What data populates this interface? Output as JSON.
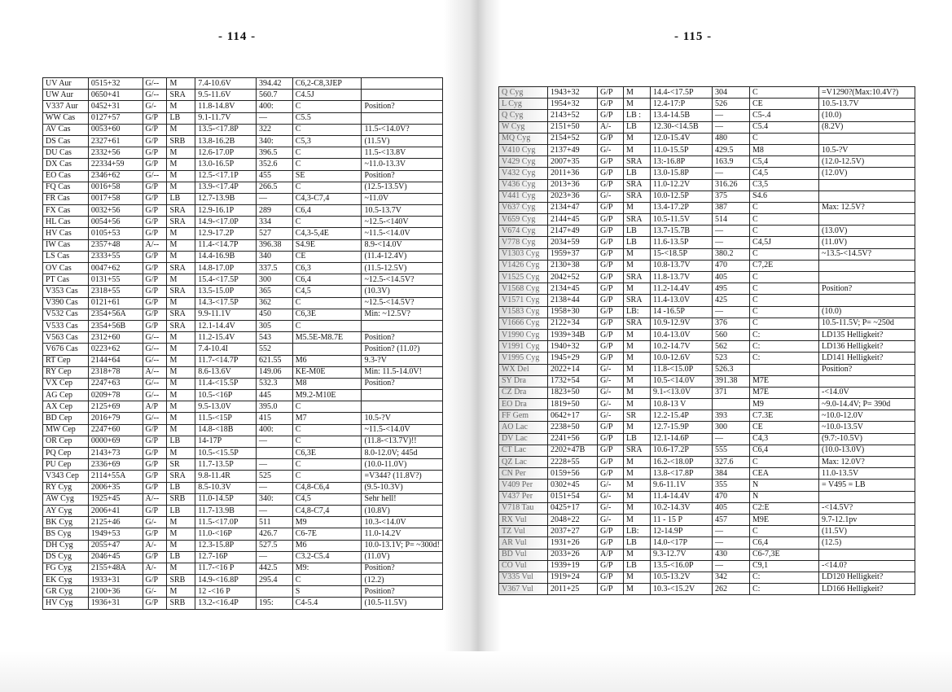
{
  "left_page": {
    "page_number": "- 114 -",
    "rows": [
      [
        "UV Aur",
        "0515+32",
        "G/--",
        "M",
        "7.4-10.6V",
        "394.42",
        "C6,2-C8,3JEP",
        ""
      ],
      [
        "UW Aur",
        "0650+41",
        "G/--",
        "SRA",
        "9.5-11.6V",
        "560.7",
        "C4.5J",
        ""
      ],
      [
        "V337 Aur",
        "0452+31",
        "G/-",
        "M",
        "11.8-14.8V",
        "400:",
        "C",
        "Position?"
      ],
      [
        "WW Cas",
        "0127+57",
        "G/P",
        "LB",
        "9.1-11.7V",
        "—",
        "C5.5",
        ""
      ],
      [
        "AV Cas",
        "0053+60",
        "G/P",
        "M",
        "13.5-<17.8P",
        "322",
        "C",
        "11.5-<14.0V?"
      ],
      [
        "DS Cas",
        "2327+61",
        "G/P",
        "SRB",
        "13.8-16.2B",
        "340:",
        "C5,3",
        "(11.5V)"
      ],
      [
        "DU Cas",
        "2332+56",
        "G/P",
        "M",
        "12.6-17.0P",
        "396.5",
        "C",
        "11.5-<13.8V"
      ],
      [
        "DX Cas",
        "22334+59",
        "G/P",
        "M",
        "13.0-16.5P",
        "352.6",
        "C",
        "~11.0-13.3V"
      ],
      [
        "EO Cas",
        "2346+62",
        "G/--",
        "M",
        "12.5-<17.1P",
        "455",
        "SE",
        "Position?"
      ],
      [
        "FQ Cas",
        "0016+58",
        "G/P",
        "M",
        "13.9-<17.4P",
        "266.5",
        "C",
        "(12.5-13.5V)"
      ],
      [
        "FR Cas",
        "0017+58",
        "G/P",
        "LB",
        "12.7-13.9B",
        "—",
        "C4,3-C7,4",
        "~11.0V"
      ],
      [
        "FX Cas",
        "0032+56",
        "G/P",
        "SRA",
        "12.9-16.1P",
        "289",
        "C6,4",
        "10.5-13.7V"
      ],
      [
        "HL Cas",
        "0054+56",
        "G/P",
        "SRA",
        "14.9-<17.0P",
        "334",
        "C",
        "~12.5-<140V"
      ],
      [
        "HV Cas",
        "0105+53",
        "G/P",
        "M",
        "12.9-17.2P",
        "527",
        "C4,3-5,4E",
        "~11.5-<14.0V"
      ],
      [
        "IW Cas",
        "2357+48",
        "A/--",
        "M",
        "11.4-<14.7P",
        "396.38",
        "S4.9E",
        "8.9-<14.0V"
      ],
      [
        "LS Cas",
        "2333+55",
        "G/P",
        "M",
        "14.4-16.9B",
        "340",
        "CE",
        "(11.4-12.4V)"
      ],
      [
        "OV Cas",
        "0047+62",
        "G/P",
        "SRA",
        "14.8-17.0P",
        "337.5",
        "C6,3",
        "(11.5-12.5V)"
      ],
      [
        "PT Cas",
        "0131+55",
        "G/P",
        "M",
        "15.4-<17.5P",
        "300",
        "C6,4",
        "~12.5-<14.5V?"
      ],
      [
        "V353 Cas",
        "2318+55",
        "G/P",
        "SRA",
        "13.5-15.0P",
        "365",
        "C4,5",
        "(10.3V)"
      ],
      [
        "V390 Cas",
        "0121+61",
        "G/P",
        "M",
        "14.3-<17.5P",
        "362",
        "C",
        "~12.5-<14.5V?"
      ],
      [
        "V532 Cas",
        "2354+56A",
        "G/P",
        "SRA",
        "9.9-11.1V",
        "450",
        "C6,3E",
        "Min: ~12.5V?"
      ],
      [
        "V533 Cas",
        "2354+56B",
        "G/P",
        "SRA",
        "12.1-14.4V",
        "305",
        "C",
        ""
      ],
      [
        "V563 Cas",
        "2312+60",
        "G/--",
        "M",
        "11.2-15.4V",
        "543",
        "M5.5E-M8.7E",
        "Position?"
      ],
      [
        "V676 Cas",
        "0223+62",
        "G/--",
        "M",
        "7.4-10.4I",
        "552",
        "",
        "Position? (11.0?)"
      ],
      [
        "RT Cep",
        "2144+64",
        "G/--",
        "M",
        "11.7-<14.7P",
        "621.55",
        "M6",
        "9.3-?V"
      ],
      [
        "RY Cep",
        "2318+78",
        "A/--",
        "M",
        "8.6-13.6V",
        "149.06",
        "KE-M0E",
        "Min: 11.5-14.0V!"
      ],
      [
        "VX Cep",
        "2247+63",
        "G/--",
        "M",
        "11.4-<15.5P",
        "532.3",
        "M8",
        "Position?"
      ],
      [
        "AG Cep",
        "0209+78",
        "G/--",
        "M",
        "10.5-<16P",
        "445",
        "M9.2-M10E",
        ""
      ],
      [
        "AX Cep",
        "2125+69",
        "A/P",
        "M",
        "9.5-13.0V",
        "395.0",
        "C",
        ""
      ],
      [
        "BD Cep",
        "2016+79",
        "G/--",
        "M",
        "11.5-<15P",
        "415",
        "M7",
        "10.5-?V"
      ],
      [
        "MW Cep",
        "2247+60",
        "G/P",
        "M",
        "14.8-<18B",
        "400:",
        "C",
        "~11.5-<14.0V"
      ],
      [
        "OR Cep",
        "0000+69",
        "G/P",
        "LB",
        "14-17P",
        "—",
        "C",
        "(11.8-<13.7V)!!"
      ],
      [
        "PQ Cep",
        "2143+73",
        "G/P",
        "M",
        "10.5-<15.5P",
        "",
        "C6,3E",
        "8.0-12.0V; 445d"
      ],
      [
        "PU Cep",
        "2336+69",
        "G/P",
        "SR",
        "11.7-13.5P",
        "—",
        "C",
        "(10.0-11.0V)"
      ],
      [
        "V343 Cep",
        "2114+55A",
        "G/P",
        "SRA",
        "9.8-11.4R",
        "525",
        "C",
        "=V344? (11.8V?)"
      ],
      [
        "RY Cyg",
        "2006+35",
        "G/P",
        "LB",
        "8.5-10.3V",
        "—",
        "C4,8-C6,4",
        "(9.5-10.3V)"
      ],
      [
        "AW Cyg",
        "1925+45",
        "A/--",
        "SRB",
        "11.0-14.5P",
        "340:",
        "C4,5",
        "Sehr hell!"
      ],
      [
        "AY Cyg",
        "2006+41",
        "G/P",
        "LB",
        "11.7-13.9B",
        "—",
        "C4,8-C7,4",
        "(10.8V)"
      ],
      [
        "BK Cyg",
        "2125+46",
        "G/-",
        "M",
        "11.5-<17.0P",
        "511",
        "M9",
        "10.3-<14.0V"
      ],
      [
        "BS Cyg",
        "1949+53",
        "G/P",
        "M",
        "11.0-<16P",
        "426.7",
        "C6-7E",
        "11.0-14.2V"
      ],
      [
        "DH Cyg",
        "2055+47",
        "A/-",
        "M",
        "12.3-15.8P",
        "527.5",
        "M6",
        "10.0-13.1V; P= ~300d!"
      ],
      [
        "DS Cyg",
        "2046+45",
        "G/P",
        "LB",
        "12.7-16P",
        "—",
        "C3.2-C5.4",
        "(11.0V)"
      ],
      [
        "FG Cyg",
        "2155+48A",
        "A/-",
        "M",
        "11.7-<16 P",
        "442.5",
        "M9:",
        "Position?"
      ],
      [
        "EK Cyg",
        "1933+31",
        "G/P",
        "SRB",
        "14.9-<16.8P",
        "295.4",
        "C",
        "(12.2)"
      ],
      [
        "GR Cyg",
        "2100+36",
        "G/-",
        "M",
        "12 -<16 P",
        "",
        "S",
        "Position?"
      ],
      [
        "HV Cyg",
        "1936+31",
        "G/P",
        "SRB",
        "13.2-<16.4P",
        "195:",
        "C4-5.4",
        "(10.5-11.5V)"
      ]
    ]
  },
  "right_page": {
    "page_number": "- 115 -",
    "rows": [
      [
        "Q Cyg",
        "1943+32",
        "G/P",
        "M",
        "14.4-<17.5P",
        "304",
        "C",
        "=V1290?(Max:10.4V?)"
      ],
      [
        "L Cyg",
        "1954+32",
        "G/P",
        "M",
        "12.4-17:P",
        "526",
        "CE",
        "10.5-13.7V"
      ],
      [
        "Q Cyg",
        "2143+52",
        "G/P",
        "LB :",
        "13.4-14.5B",
        "—",
        "C5-.4",
        "(10.0)"
      ],
      [
        "W Cyg",
        "2151+50",
        "A/-",
        "LB",
        "12.30-<14.5B",
        "—",
        "C5.4",
        "(8.2V)"
      ],
      [
        "MQ Cyg",
        "2154+52",
        "G/P",
        "M",
        "12.0-15.4V",
        "480",
        "C",
        ""
      ],
      [
        "V410 Cyg",
        "2137+49",
        "G/-",
        "M",
        "11.0-15.5P",
        "429.5",
        "M8",
        "10.5-?V"
      ],
      [
        "V429 Cyg",
        "2007+35",
        "G/P",
        "SRA",
        "13:-16.8P",
        "163.9",
        "C5,4",
        "(12.0-12.5V)"
      ],
      [
        "V432 Cyg",
        "2011+36",
        "G/P",
        "LB",
        "13.0-15.8P",
        "—",
        "C4,5",
        "(12.0V)"
      ],
      [
        "V436 Cyg",
        "2013+36",
        "G/P",
        "SRA",
        "11.0-12.2V",
        "316.26",
        "C3,5",
        ""
      ],
      [
        "V441 Cyg",
        "2023+36",
        "G/-",
        "SRA",
        "10.0-12.5P",
        "375",
        "S4.6",
        ""
      ],
      [
        "V637 Cyg",
        "2134+47",
        "G/P",
        "M",
        "13.4-17.2P",
        "387",
        "C",
        "Max: 12.5V?"
      ],
      [
        "V659 Cyg",
        "2144+45",
        "G/P",
        "SRA",
        "10.5-11.5V",
        "514",
        "C",
        ""
      ],
      [
        "V674 Cyg",
        "2147+49",
        "G/P",
        "LB",
        "13.7-15.7B",
        "—",
        "C",
        "(13.0V)"
      ],
      [
        "V778 Cyg",
        "2034+59",
        "G/P",
        "LB",
        "11.6-13.5P",
        "—",
        "C4,5J",
        "(11.0V)"
      ],
      [
        "V1303 Cyg",
        "1959+37",
        "G/P",
        "M",
        "15-<18.5P",
        "380.2",
        "C",
        "~13.5-<14.5V?"
      ],
      [
        "V1426 Cyg",
        "2130+38",
        "G/P",
        "M",
        "10.8-13.7V",
        "470",
        "C7,2E",
        ""
      ],
      [
        "V1525 Cyg",
        "2042+52",
        "G/P",
        "SRA",
        "11.8-13.7V",
        "405",
        "C",
        ""
      ],
      [
        "V1568 Cyg",
        "2134+45",
        "G/P",
        "M",
        "11.2-14.4V",
        "495",
        "C",
        "Position?"
      ],
      [
        "V1571 Cyg",
        "2138+44",
        "G/P",
        "SRA",
        "11.4-13.0V",
        "425",
        "C",
        ""
      ],
      [
        "V1583 Cyg",
        "1958+30",
        "G/P",
        "LB:",
        "14 -16.5P",
        "—",
        "C",
        "(10.0)"
      ],
      [
        "V1666 Cyg",
        "2122+34",
        "G/P",
        "SRA",
        "10.9-12.9V",
        "376",
        "C",
        "10.5-11.5V; P= ~250d"
      ],
      [
        "V1990 Cyg",
        "1939+34B",
        "G/P",
        "M",
        "10.4-13.0V",
        "560",
        "C:",
        "LD135  Helligkeit?"
      ],
      [
        "V1991 Cyg",
        "1940+32",
        "G/P",
        "M",
        "10.2-14.7V",
        "562",
        "C:",
        "LD136  Helligkeit?"
      ],
      [
        "V1995 Cyg",
        "1945+29",
        "G/P",
        "M",
        "10.0-12.6V",
        "523",
        "C:",
        "LD141  Helligkeit?"
      ],
      [
        "WX Del",
        "2022+14",
        "G/-",
        "M",
        "11.8-<15.0P",
        "526.3",
        "",
        "Position?"
      ],
      [
        "SY Dra",
        "1732+54",
        "G/-",
        "M",
        "10.5-<14.0V",
        "391.38",
        "M7E",
        ""
      ],
      [
        "CZ Dra",
        "1823+50",
        "G/-",
        "M",
        "9.1-<13.0V",
        "371",
        "M7E",
        "-<14.0V"
      ],
      [
        "EO Dra",
        "1819+50",
        "G/-",
        "M",
        "10.8-13 V",
        "",
        "M9",
        "~9.0-14.4V; P= 390d"
      ],
      [
        "FF Gem",
        "0642+17",
        "G/-",
        "SR",
        "12.2-15.4P",
        "393",
        "C7.3E",
        "~10.0-12.0V"
      ],
      [
        "AO Lac",
        "2238+50",
        "G/P",
        "M",
        "12.7-15.9P",
        "300",
        "CE",
        "~10.0-13.5V"
      ],
      [
        "DV Lac",
        "2241+56",
        "G/P",
        "LB",
        "12.1-14.6P",
        "—",
        "C4,3",
        "(9.7:-10.5V)"
      ],
      [
        "CT Lac",
        "2202+47B",
        "G/P",
        "SRA",
        "10.6-17.2P",
        "555",
        "C6,4",
        "(10.0-13.0V)"
      ],
      [
        "QZ Lac",
        "2228+55",
        "G/P",
        "M",
        "16.2-<18.0P",
        "327.6",
        "C",
        "Max: 12.0V?"
      ],
      [
        "CN Per",
        "0159+56",
        "G/P",
        "M",
        "13.8-<17.8P",
        "384",
        "CEA",
        "11.0-13.5V"
      ],
      [
        "V409 Per",
        "0302+45",
        "G/-",
        "M",
        "9.6-11.1V",
        "355",
        "N",
        "= V495 = LB"
      ],
      [
        "V437 Per",
        "0151+54",
        "G/-",
        "M",
        "11.4-14.4V",
        "470",
        "N",
        ""
      ],
      [
        "V718 Tau",
        "0425+17",
        "G/-",
        "M",
        "10.2-14.3V",
        "405",
        "C2:E",
        "-<14.5V?"
      ],
      [
        "RX Vul",
        "2048+22",
        "G/-",
        "M",
        "11 - 15 P",
        "457",
        "M9E",
        "9.7-12.1pv"
      ],
      [
        "TZ Vul",
        "2037+27",
        "G/P",
        "LB:",
        "12-14.9P",
        "—",
        "C",
        "(11.5V)"
      ],
      [
        "AR Vul",
        "1931+26",
        "G/P",
        "LB",
        "14.0-<17P",
        "—",
        "C6,4",
        "(12.5)"
      ],
      [
        "BD Vul",
        "2033+26",
        "A/P",
        "M",
        "9.3-12.7V",
        "430",
        "C6-7,3E",
        ""
      ],
      [
        "CO Vul",
        "1939+19",
        "G/P",
        "LB",
        "13.5-<16.0P",
        "—",
        "C9,1",
        "-<14.0?"
      ],
      [
        "V335 Vul",
        "1919+24",
        "G/P",
        "M",
        "10.5-13.2V",
        "342",
        "C:",
        "LD120  Helligkeit?"
      ],
      [
        "V367 Vul",
        "2011+25",
        "G/P",
        "M",
        "10.3-<15.2V",
        "262",
        "C:",
        "LD166  Helligkeit?"
      ]
    ]
  }
}
